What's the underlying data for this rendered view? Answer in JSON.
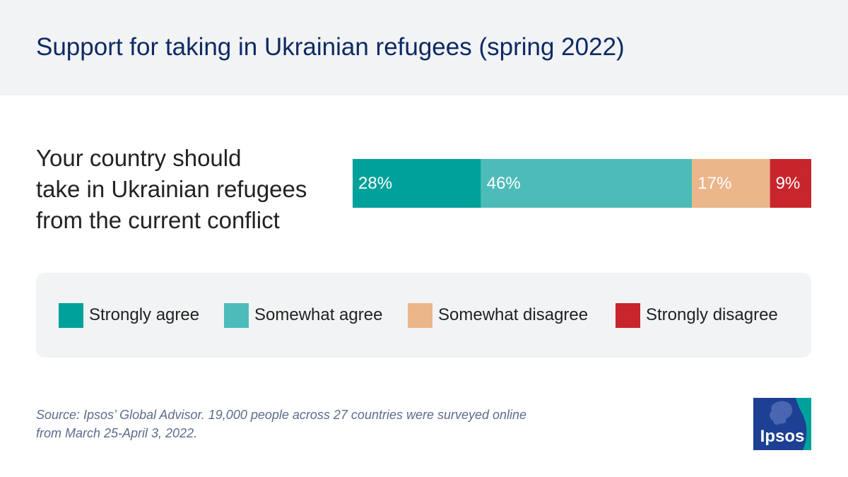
{
  "header": {
    "title": "Support for taking in Ukrainian refugees (spring 2022)"
  },
  "question": "Your country should\ntake in Ukrainian refugees\nfrom the current conflict",
  "chart_data": {
    "type": "bar",
    "orientation": "horizontal",
    "stacked": true,
    "categories": [
      "Your country should take in Ukrainian refugees from the current conflict"
    ],
    "series": [
      {
        "name": "Strongly agree",
        "values": [
          28
        ],
        "label": "28%",
        "color": "#00a19a"
      },
      {
        "name": "Somewhat agree",
        "values": [
          46
        ],
        "label": "46%",
        "color": "#4dbcb9"
      },
      {
        "name": "Somewhat disagree",
        "values": [
          17
        ],
        "label": "17%",
        "color": "#ebb68a"
      },
      {
        "name": "Strongly disagree",
        "values": [
          9
        ],
        "label": "9%",
        "color": "#c8252c"
      }
    ],
    "xlim": [
      0,
      100
    ],
    "title": "Support for taking in Ukrainian refugees (spring 2022)",
    "legend": "bottom"
  },
  "legend": {
    "items": [
      {
        "label": "Strongly agree",
        "color": "#00a19a"
      },
      {
        "label": "Somewhat agree",
        "color": "#4dbcb9"
      },
      {
        "label": "Somewhat disagree",
        "color": "#ebb68a"
      },
      {
        "label": "Strongly disagree",
        "color": "#c8252c"
      }
    ]
  },
  "source": "Source: Ipsos’ Global Advisor. 19,000 people across 27 countries were surveyed online\nfrom March 25-April 3, 2022.",
  "logo": {
    "text": "Ipsos",
    "icon": "ipsos-logo-icon",
    "bg_color": "#1d3f94",
    "accent_color": "#00a19a"
  }
}
